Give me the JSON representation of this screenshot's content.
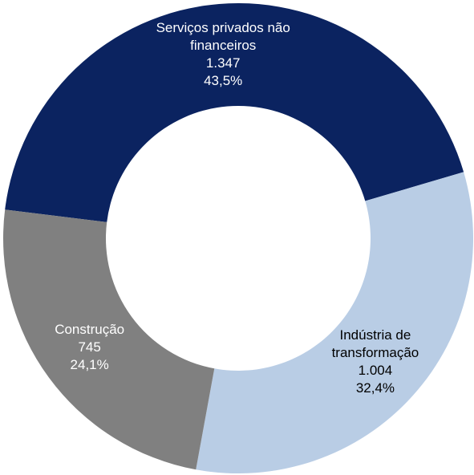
{
  "chart_data": {
    "type": "donut",
    "categories": [
      "Serviços privados não financeiros",
      "Indústria de transformação",
      "Construção"
    ],
    "values": [
      1347,
      1004,
      745
    ],
    "value_labels": [
      "1.347",
      "1.004",
      "745"
    ],
    "percentages": [
      43.5,
      32.4,
      24.1
    ],
    "percentage_labels": [
      "43,5%",
      "32,4%",
      "24,1%"
    ],
    "colors": [
      "#0b2360",
      "#b9cde5",
      "#808080"
    ]
  }
}
